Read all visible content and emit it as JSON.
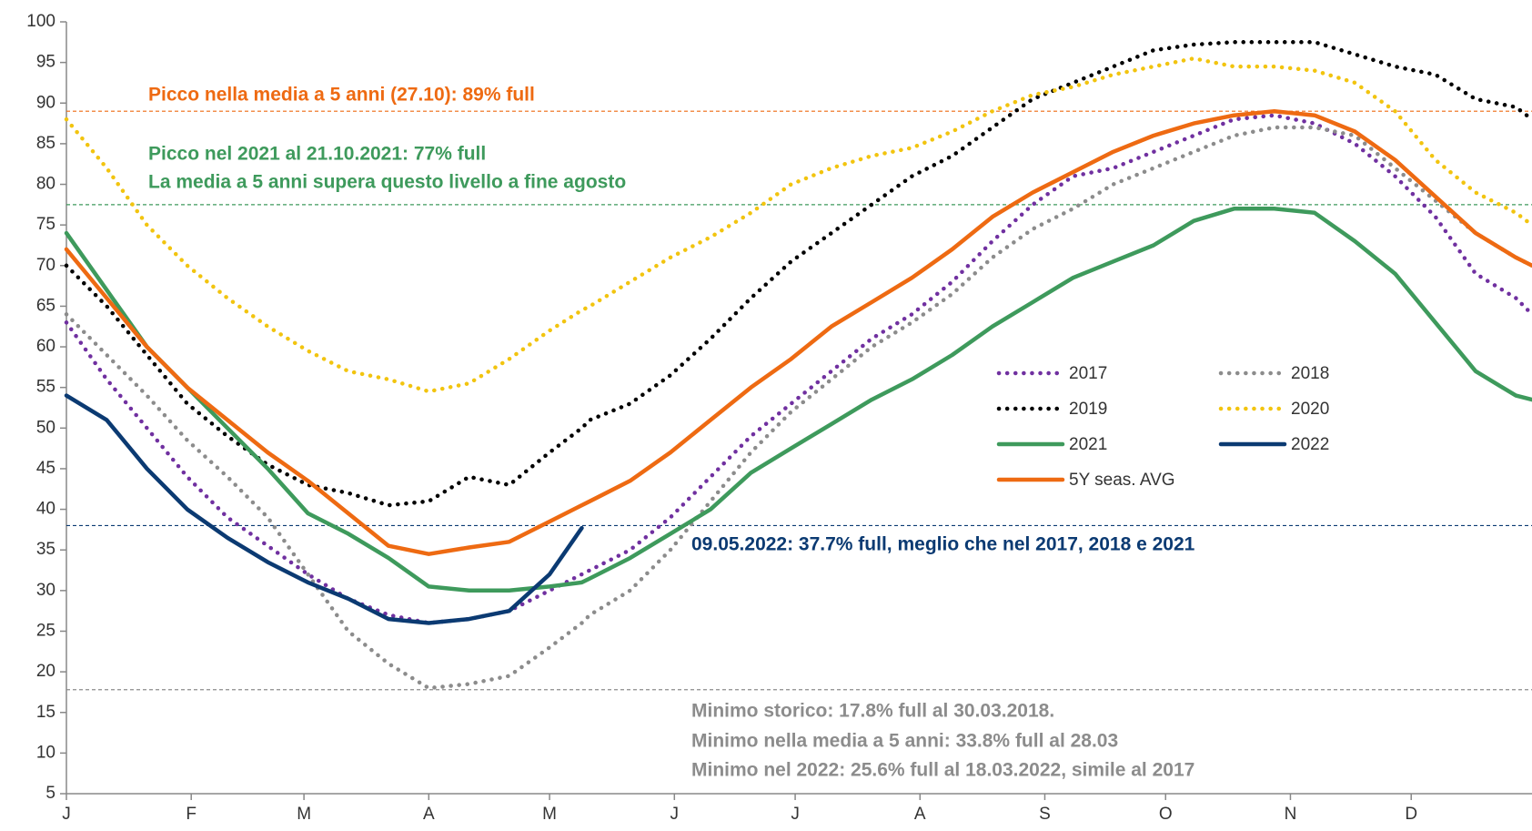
{
  "chart_data": {
    "type": "line",
    "x": [
      1,
      11,
      21,
      31,
      41,
      51,
      61,
      71,
      81,
      91,
      101,
      111,
      121,
      129,
      131,
      141,
      151,
      161,
      171,
      181,
      191,
      201,
      211,
      221,
      231,
      241,
      251,
      261,
      271,
      281,
      291,
      301,
      311,
      321,
      331,
      341,
      351,
      361,
      365
    ],
    "xlim": [
      1,
      365
    ],
    "xticks": [
      {
        "value": 1,
        "label": "J"
      },
      {
        "value": 32,
        "label": "F"
      },
      {
        "value": 60,
        "label": "M"
      },
      {
        "value": 91,
        "label": "A"
      },
      {
        "value": 121,
        "label": "M"
      },
      {
        "value": 152,
        "label": "J"
      },
      {
        "value": 182,
        "label": "J"
      },
      {
        "value": 213,
        "label": "A"
      },
      {
        "value": 244,
        "label": "S"
      },
      {
        "value": 274,
        "label": "O"
      },
      {
        "value": 305,
        "label": "N"
      },
      {
        "value": 335,
        "label": "D"
      }
    ],
    "ylim": [
      5,
      100
    ],
    "yticks": [
      5,
      10,
      15,
      20,
      25,
      30,
      35,
      40,
      45,
      50,
      55,
      60,
      65,
      70,
      75,
      80,
      85,
      90,
      95,
      100
    ],
    "grid": false,
    "series": [
      {
        "name": "2017",
        "color": "#7030a0",
        "dash": "dotted",
        "values": [
          63,
          56,
          50,
          44,
          39,
          35.5,
          32,
          29,
          27,
          26,
          26.5,
          27.5,
          30,
          32,
          32.5,
          35,
          39,
          44,
          49,
          53,
          57,
          61,
          64,
          68,
          73,
          77.5,
          81,
          82,
          84,
          86,
          88,
          88.5,
          87.5,
          85,
          81,
          76,
          69,
          66,
          64
        ]
      },
      {
        "name": "2018",
        "color": "#8c8c8c",
        "dash": "dotted",
        "values": [
          64,
          59,
          54,
          48.5,
          44,
          39,
          32,
          25,
          21,
          18,
          18.5,
          19.5,
          23,
          26,
          27,
          30,
          35,
          41,
          47,
          52,
          56,
          60,
          63,
          66.5,
          71,
          74.5,
          77,
          80,
          82,
          84,
          86,
          87,
          87,
          86,
          82,
          78,
          74,
          71,
          70
        ]
      },
      {
        "name": "2019",
        "color": "#000000",
        "dash": "dotted",
        "values": [
          70,
          65,
          59,
          53,
          49,
          45.5,
          43,
          42,
          40.5,
          41,
          44,
          43,
          47,
          50,
          51,
          53,
          56.5,
          61,
          66,
          70.5,
          74,
          77.5,
          81,
          83.5,
          87,
          90.5,
          92.5,
          94.5,
          96.5,
          97.2,
          97.5,
          97.5,
          97.5,
          96,
          94.5,
          93.5,
          90.5,
          89.5,
          88
        ]
      },
      {
        "name": "2020",
        "color": "#f2c40f",
        "dash": "dotted",
        "values": [
          88,
          82,
          75,
          70,
          66,
          62.5,
          59.5,
          57,
          56,
          54.5,
          55.5,
          58.5,
          62,
          64.5,
          65,
          68,
          71,
          73.5,
          76.5,
          80,
          82,
          83.5,
          84.5,
          86.5,
          89,
          91,
          92,
          93.5,
          94.5,
          95.5,
          94.5,
          94.5,
          94,
          92.5,
          89,
          83,
          79,
          76.5,
          75
        ]
      },
      {
        "name": "2021",
        "color": "#3e9a5c",
        "dash": "solid",
        "values": [
          74,
          67,
          60,
          55,
          50,
          45,
          39.5,
          37,
          34,
          30.5,
          30,
          30,
          30.5,
          31,
          31.5,
          34,
          37,
          40,
          44.5,
          47.5,
          50.5,
          53.5,
          56,
          59,
          62.5,
          65.5,
          68.5,
          70.5,
          72.5,
          75.5,
          77,
          77,
          76.5,
          73,
          69,
          63,
          57,
          54,
          53.5
        ]
      },
      {
        "name": "2022",
        "color": "#0b3a72",
        "dash": "solid",
        "values": [
          54,
          51,
          45,
          40,
          36.5,
          33.5,
          31,
          29,
          26.5,
          26,
          26.5,
          27.5,
          32,
          37.7,
          null,
          null,
          null,
          null,
          null,
          null,
          null,
          null,
          null,
          null,
          null,
          null,
          null,
          null,
          null,
          null,
          null,
          null,
          null,
          null,
          null,
          null,
          null,
          null,
          null
        ]
      },
      {
        "name": "5Y seas. AVG",
        "color": "#ee6a12",
        "dash": "solid",
        "values": [
          72,
          66,
          60,
          55,
          51,
          47,
          43.5,
          39.5,
          35.5,
          34.5,
          35.3,
          36,
          38.5,
          40.5,
          41,
          43.5,
          47,
          51,
          55,
          58.5,
          62.5,
          65.5,
          68.5,
          72,
          76,
          79,
          81.5,
          84,
          86,
          87.5,
          88.5,
          89,
          88.5,
          86.5,
          83,
          78.5,
          74,
          71,
          70
        ]
      }
    ],
    "reference_lines": [
      {
        "value": 89,
        "color": "#ee6a12"
      },
      {
        "value": 77.5,
        "color": "#3e9a5c"
      },
      {
        "value": 38,
        "color": "#0b3a72"
      },
      {
        "value": 17.8,
        "color": "#8c8c8c"
      }
    ],
    "annotations": [
      {
        "color": "#ee6a12",
        "lines": [
          "Picco nella media a 5 anni (27.10): 89% full"
        ]
      },
      {
        "color": "#3e9a5c",
        "lines": [
          "Picco nel 2021 al 21.10.2021: 77% full",
          "La media a 5 anni supera questo livello a fine agosto"
        ]
      },
      {
        "color": "#0b3a72",
        "lines": [
          "09.05.2022: 37.7% full, meglio che nel 2017, 2018 e 2021"
        ]
      },
      {
        "color": "#8c8c8c",
        "lines": [
          "Minimo storico: 17.8% full al 30.03.2018.",
          "Minimo nella media a 5 anni: 33.8% full al 28.03",
          "Minimo nel 2022: 25.6% full al 18.03.2022, simile al 2017"
        ]
      }
    ]
  }
}
